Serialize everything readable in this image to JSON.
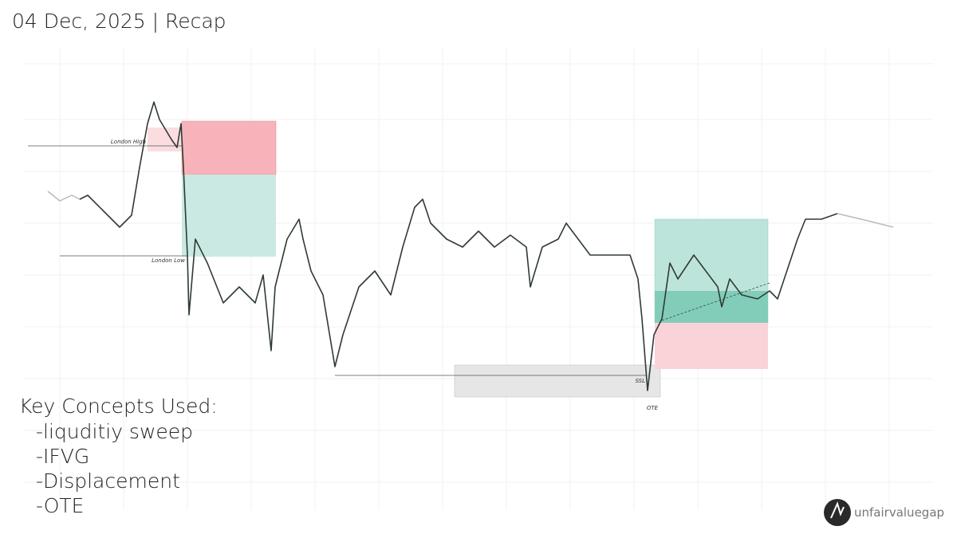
{
  "header": {
    "title": "04 Dec, 2025 | Recap"
  },
  "annotations": {
    "london_high": "London High",
    "london_low": "London Low",
    "ssl": "SSL",
    "ote": "OTE"
  },
  "key_concepts": {
    "heading": "Key Concepts Used:",
    "items": [
      "-liquditiy sweep",
      "-IFVG",
      "-Displacement",
      "-OTE"
    ]
  },
  "watermark": "unfairvaluegap"
}
